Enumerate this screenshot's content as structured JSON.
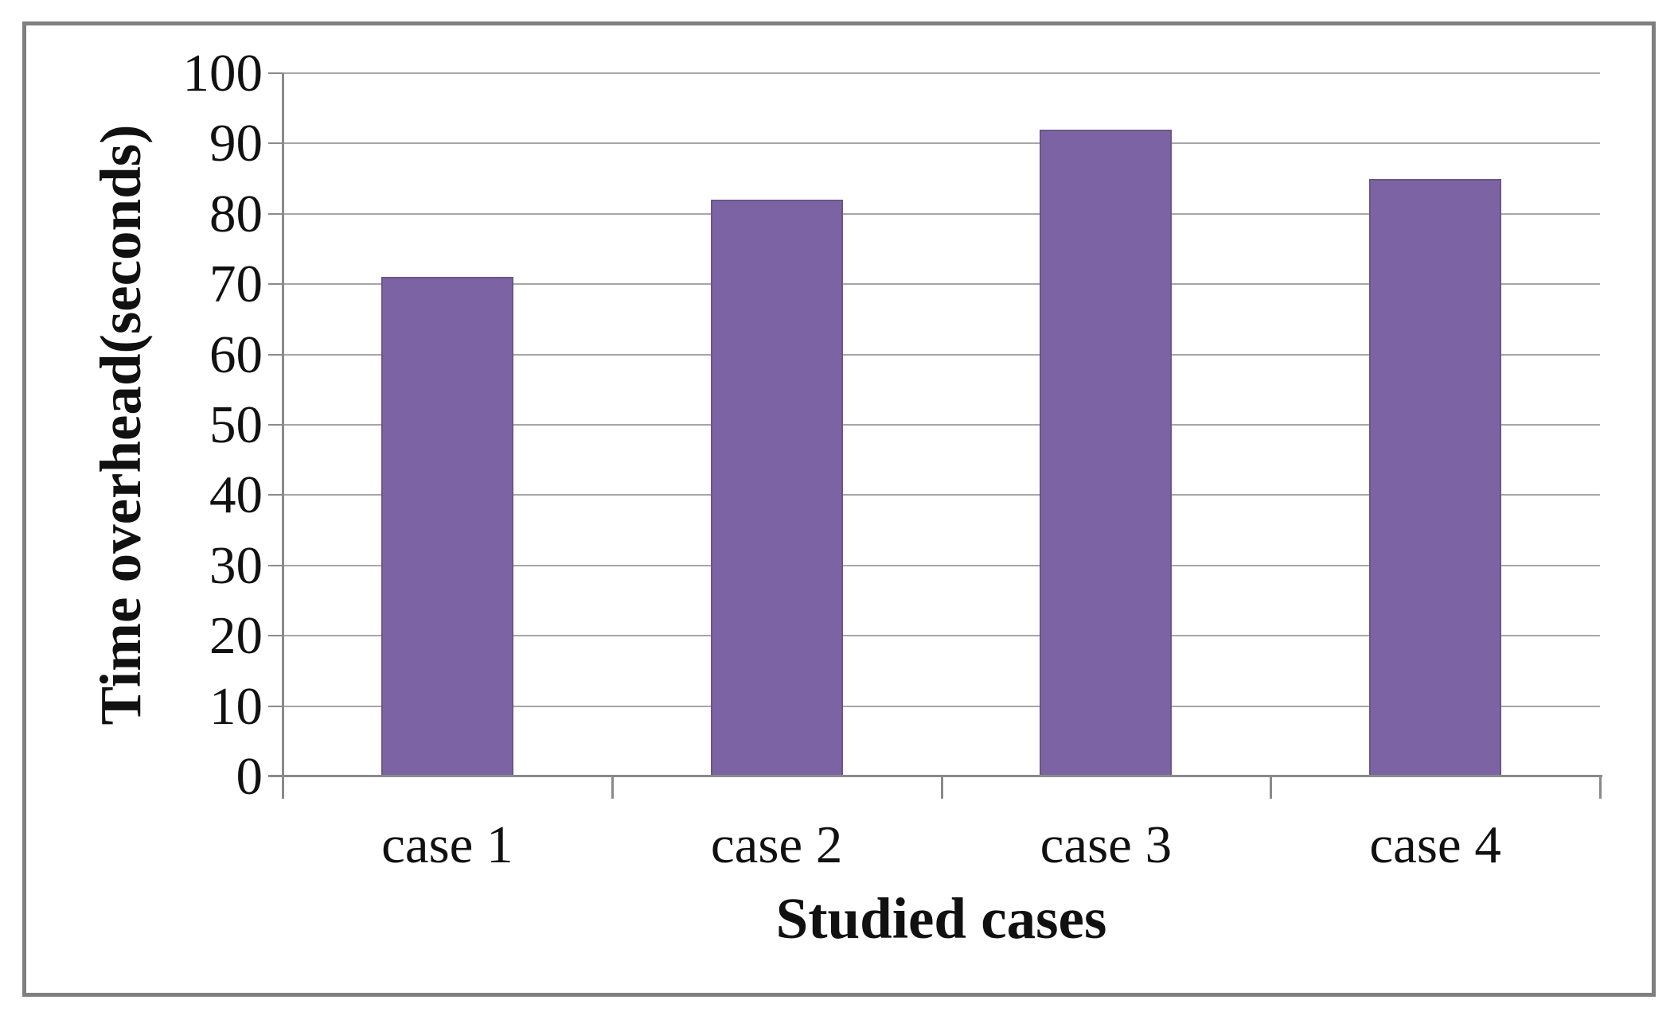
{
  "chart_data": {
    "type": "bar",
    "categories": [
      "case 1",
      "case 2",
      "case 3",
      "case 4"
    ],
    "values": [
      71,
      82,
      92,
      85
    ],
    "title": "",
    "xlabel": "Studied cases",
    "ylabel": "Time overhead(seconds)",
    "ylim": [
      0,
      100
    ],
    "ytick_step": 10,
    "ytick_labels": [
      "0",
      "10",
      "20",
      "30",
      "40",
      "50",
      "60",
      "70",
      "80",
      "90",
      "100"
    ],
    "grid": "horizontal",
    "legend": "none",
    "colors": {
      "bar_fill": "#7c64a4",
      "bar_edge": "#6a5588",
      "axis_line": "#8a8a8a",
      "gridline": "#a6a6a6",
      "frame_border": "#7f7f7f",
      "text": "#111111",
      "background": "#ffffff"
    }
  }
}
